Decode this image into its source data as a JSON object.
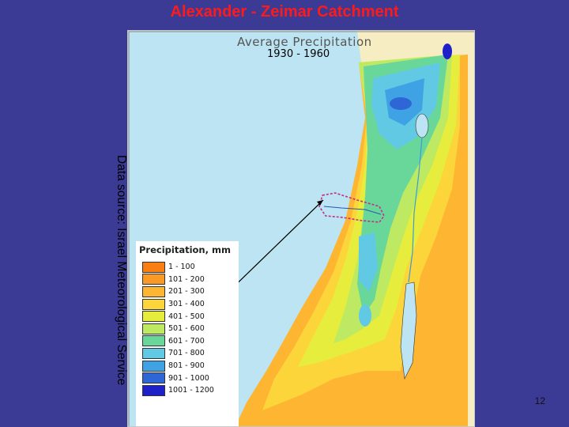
{
  "slide": {
    "title": "Alexander - Zeimar Catchment",
    "source_note": "Data source: Israel Meteorological Service",
    "page_number": "12"
  },
  "map": {
    "title": "Average Precipitation",
    "period": "1930 - 1960",
    "sea_color": "#bde4f2",
    "land_color": "#f6eec2",
    "catchment_outline_color": "#c0308a"
  },
  "legend": {
    "title": "Precipitation, mm",
    "items": [
      {
        "label": "1 - 100",
        "color": "#f97f12"
      },
      {
        "label": "101 - 200",
        "color": "#fa9a25"
      },
      {
        "label": "201 - 300",
        "color": "#fdb532"
      },
      {
        "label": "301 - 400",
        "color": "#fcd53a"
      },
      {
        "label": "401 - 500",
        "color": "#e6ed3c"
      },
      {
        "label": "501 - 600",
        "color": "#bdea62"
      },
      {
        "label": "601 - 700",
        "color": "#6ad79a"
      },
      {
        "label": "701 - 800",
        "color": "#62c9e4"
      },
      {
        "label": "801 - 900",
        "color": "#3fa2e4"
      },
      {
        "label": "901 - 1000",
        "color": "#2f66d6"
      },
      {
        "label": "1001 - 1200",
        "color": "#2020c8"
      }
    ]
  }
}
